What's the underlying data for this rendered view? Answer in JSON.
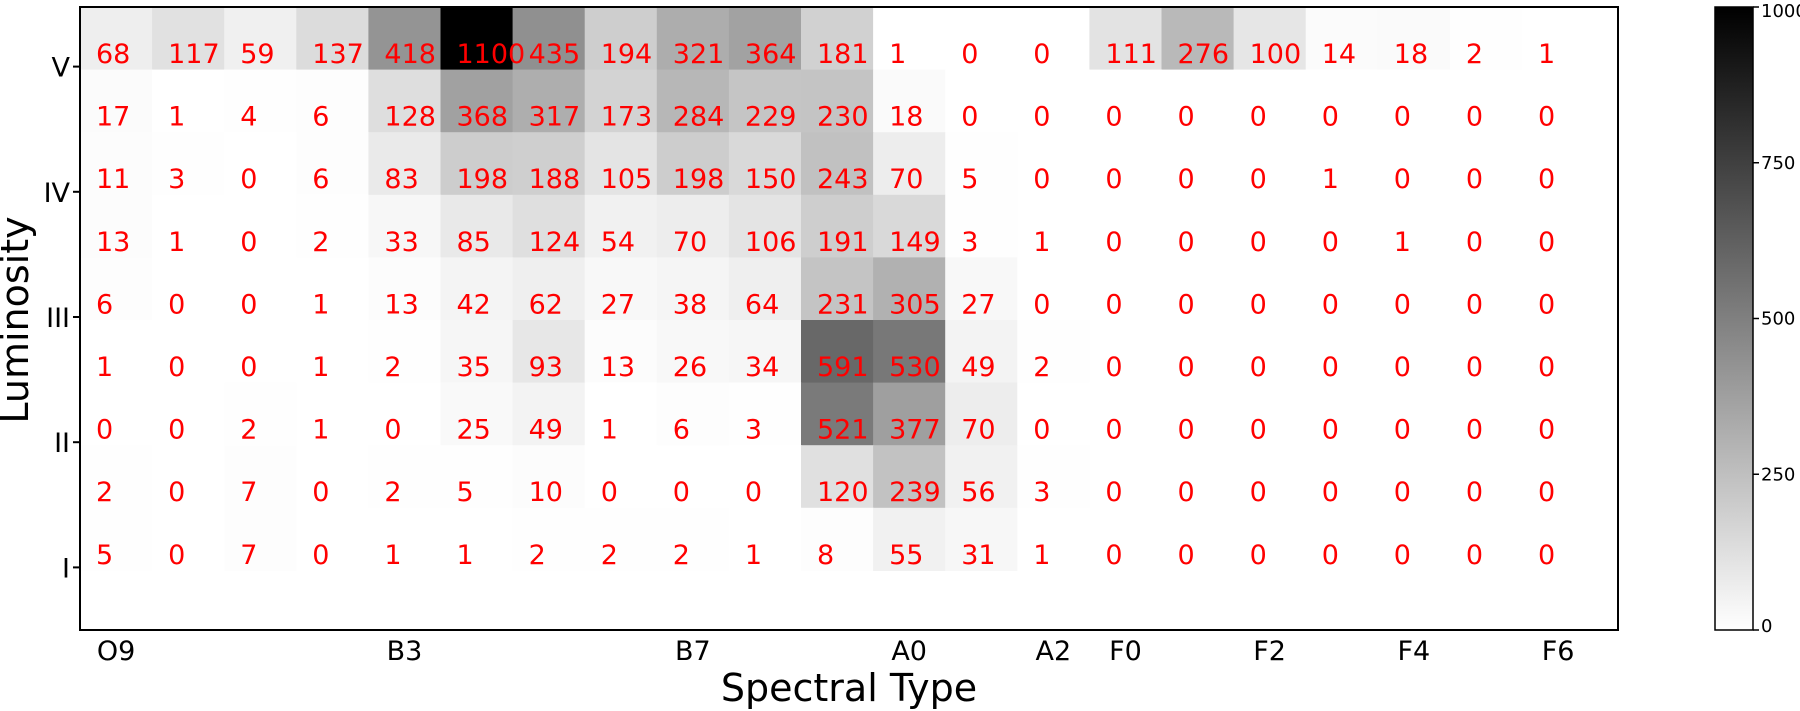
{
  "chart_data": {
    "type": "heatmap",
    "xlabel": "Spectral Type",
    "ylabel": "Luminosity",
    "x_tick_labels": [
      "O9",
      "B3",
      "B7",
      "A0",
      "A2",
      "F0",
      "F2",
      "F4",
      "F6"
    ],
    "x_tick_columns": [
      0,
      4,
      8,
      11,
      13,
      14,
      16,
      18,
      20
    ],
    "y_tick_labels": [
      "V",
      "IV",
      "III",
      "II",
      "I"
    ],
    "y_tick_rows": [
      0,
      2,
      4,
      6,
      8
    ],
    "colorbar": {
      "min": 0,
      "max": 1000,
      "ticks": [
        0,
        250,
        500,
        750,
        1000
      ],
      "colormap": "gray_r"
    },
    "annotation_color": "#ff0000",
    "grid": false,
    "values": [
      [
        68,
        117,
        59,
        137,
        418,
        1100,
        435,
        194,
        321,
        364,
        181,
        1,
        0,
        0,
        111,
        276,
        100,
        14,
        18,
        2,
        1
      ],
      [
        17,
        1,
        4,
        6,
        128,
        368,
        317,
        173,
        284,
        229,
        230,
        18,
        0,
        0,
        0,
        0,
        0,
        0,
        0,
        0,
        0
      ],
      [
        11,
        3,
        0,
        6,
        83,
        198,
        188,
        105,
        198,
        150,
        243,
        70,
        5,
        0,
        0,
        0,
        0,
        1,
        0,
        0,
        0
      ],
      [
        13,
        1,
        0,
        2,
        33,
        85,
        124,
        54,
        70,
        106,
        191,
        149,
        3,
        1,
        0,
        0,
        0,
        0,
        1,
        0,
        0
      ],
      [
        6,
        0,
        0,
        1,
        13,
        42,
        62,
        27,
        38,
        64,
        231,
        305,
        27,
        0,
        0,
        0,
        0,
        0,
        0,
        0,
        0
      ],
      [
        1,
        0,
        0,
        1,
        2,
        35,
        93,
        13,
        26,
        34,
        591,
        530,
        49,
        2,
        0,
        0,
        0,
        0,
        0,
        0,
        0
      ],
      [
        0,
        0,
        2,
        1,
        0,
        25,
        49,
        1,
        6,
        3,
        521,
        377,
        70,
        0,
        0,
        0,
        0,
        0,
        0,
        0,
        0
      ],
      [
        2,
        0,
        7,
        0,
        2,
        5,
        10,
        0,
        0,
        0,
        120,
        239,
        56,
        3,
        0,
        0,
        0,
        0,
        0,
        0,
        0
      ],
      [
        5,
        0,
        7,
        0,
        1,
        1,
        2,
        2,
        2,
        1,
        8,
        55,
        31,
        1,
        0,
        0,
        0,
        0,
        0,
        0,
        0
      ]
    ]
  }
}
